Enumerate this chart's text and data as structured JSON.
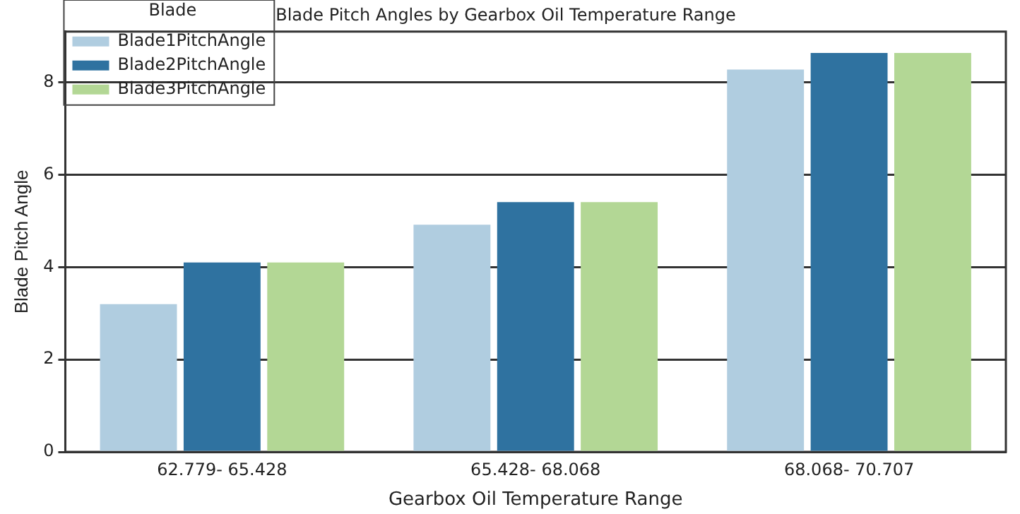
{
  "chart_data": {
    "type": "bar",
    "title": "Blade Pitch Angles by Gearbox Oil Temperature Range",
    "xlabel": "Gearbox Oil Temperature Range",
    "ylabel": "Blade Pitch Angle",
    "legend_title": "Blade",
    "categories": [
      "62.779- 65.428",
      "65.428- 68.068",
      "68.068- 70.707"
    ],
    "series": [
      {
        "name": "Blade1PitchAngle",
        "color": "#b0cde0",
        "values": [
          3.2,
          4.92,
          8.28
        ]
      },
      {
        "name": "Blade2PitchAngle",
        "color": "#2f72a0",
        "values": [
          4.1,
          5.41,
          8.64
        ]
      },
      {
        "name": "Blade3PitchAngle",
        "color": "#b3d795",
        "values": [
          4.1,
          5.41,
          8.64
        ]
      }
    ],
    "ylim": [
      0,
      9.1
    ],
    "yticks": [
      0,
      2,
      4,
      6,
      8
    ],
    "grid": "y",
    "legend": "top left"
  }
}
